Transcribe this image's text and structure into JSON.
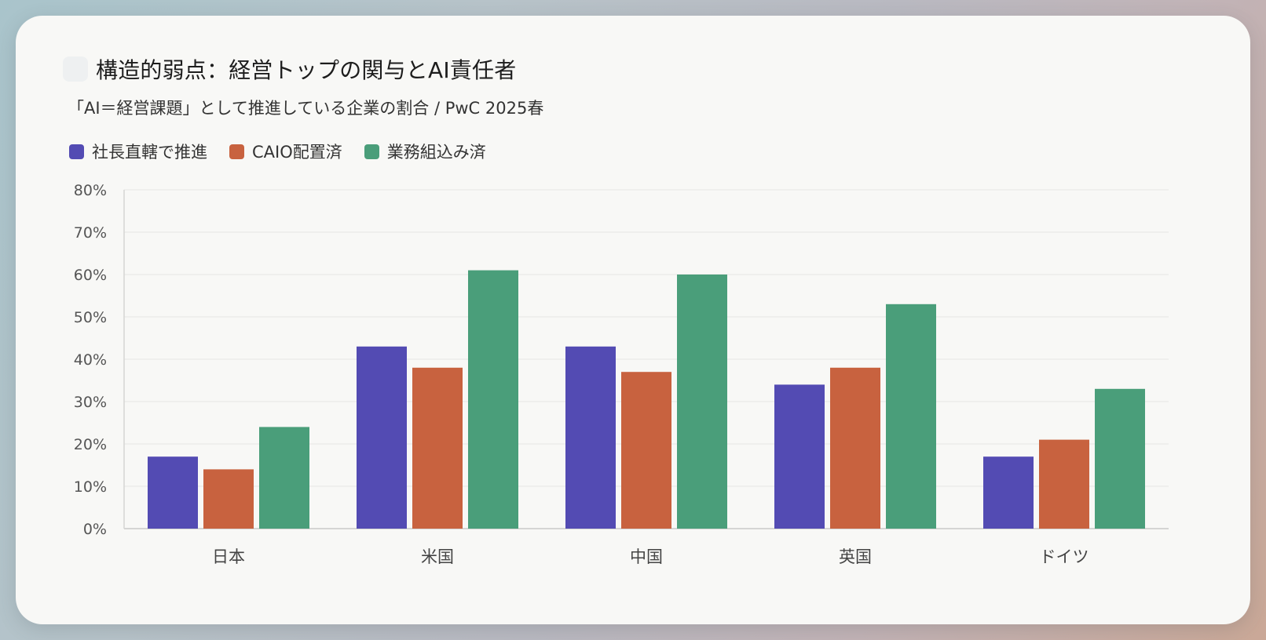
{
  "header": {
    "title": "構造的弱点：経営トップの関与とAI責任者",
    "subtitle": "「AI＝経営課題」として推進している企業の割合 / PwC 2025春"
  },
  "chart_data": {
    "type": "bar",
    "categories": [
      "日本",
      "米国",
      "中国",
      "英国",
      "ドイツ"
    ],
    "series": [
      {
        "name": "社長直轄で推進",
        "color": "#534bb3",
        "values": [
          17,
          43,
          43,
          34,
          17
        ]
      },
      {
        "name": "CAIO配置済",
        "color": "#c8623f",
        "values": [
          14,
          38,
          37,
          38,
          21
        ]
      },
      {
        "name": "業務組込み済",
        "color": "#4a9e7a",
        "values": [
          24,
          61,
          60,
          53,
          33
        ]
      }
    ],
    "ylim": [
      0,
      80
    ],
    "yticks": [
      0,
      10,
      20,
      30,
      40,
      50,
      60,
      70,
      80
    ],
    "ytick_labels": [
      "0%",
      "10%",
      "20%",
      "30%",
      "40%",
      "50%",
      "60%",
      "70%",
      "80%"
    ],
    "grid": true,
    "legend_position": "top-left"
  }
}
